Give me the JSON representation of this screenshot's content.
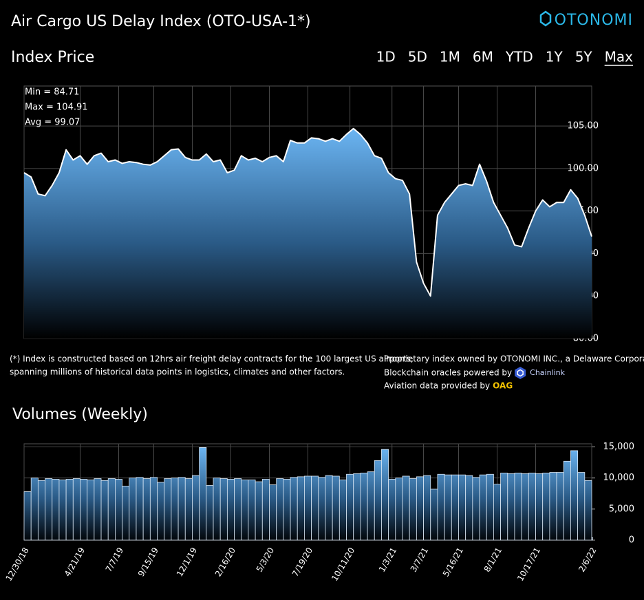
{
  "header": {
    "title": "Air Cargo US Delay Index (OTO-USA-1*)",
    "logo": "OTONOMI",
    "ranges": [
      "1D",
      "5D",
      "1M",
      "6M",
      "YTD",
      "1Y",
      "5Y",
      "Max"
    ],
    "active_range": "Max"
  },
  "stats": [
    "Min = 84.71",
    "Max = 104.91",
    "Avg = 99.07"
  ],
  "footnotes": {
    "left": [
      "(*) Index is constructed based on 12hrs air freight delay contracts for the 100 largest US airports,",
      "spanning millions of historical data points in logistics, climates and other factors."
    ],
    "right": [
      "Proprietary index owned by OTONOMI INC., a Delaware Corporation.",
      "Blockchain oracles powered by",
      "Aviation data provided by"
    ],
    "chainlink": "Chainlink",
    "oag": "OAG"
  },
  "chart_data": [
    {
      "type": "area",
      "title": "Index Price",
      "color": "#ffffff",
      "fill_color": "#62b0f0",
      "grid": true,
      "x": [
        "12/30/18",
        "1/13/19",
        "1/27/19",
        "2/10/19",
        "2/24/19",
        "3/10/19",
        "3/24/19",
        "4/7/19",
        "4/21/19",
        "5/5/19",
        "5/19/19",
        "6/2/19",
        "6/16/19",
        "6/30/19",
        "7/14/19",
        "7/28/19",
        "8/11/19",
        "8/25/19",
        "9/8/19",
        "9/22/19",
        "10/6/19",
        "10/20/19",
        "11/3/19",
        "11/17/19",
        "12/1/19",
        "12/15/19",
        "12/29/19",
        "1/12/20",
        "1/26/20",
        "2/9/20",
        "2/23/20",
        "3/8/20",
        "3/22/20",
        "4/5/20",
        "4/19/20",
        "5/3/20",
        "5/17/20",
        "5/31/20",
        "6/14/20",
        "6/28/20",
        "7/12/20",
        "7/26/20",
        "8/9/20",
        "8/23/20",
        "9/6/20",
        "9/20/20",
        "10/4/20",
        "10/18/20",
        "11/1/20",
        "11/15/20",
        "11/29/20",
        "12/13/20",
        "12/27/20",
        "1/10/21",
        "1/24/21",
        "2/7/21",
        "2/21/21",
        "3/7/21",
        "3/21/21",
        "4/4/21",
        "4/18/21",
        "5/2/21",
        "5/16/21",
        "5/30/21",
        "6/13/21",
        "6/27/21",
        "7/11/21",
        "7/25/21",
        "8/8/21",
        "8/22/21",
        "9/5/21",
        "9/19/21",
        "10/3/21",
        "10/17/21",
        "10/31/21",
        "11/14/21",
        "11/28/21",
        "12/12/21",
        "12/26/21",
        "1/9/22",
        "1/23/22",
        "2/6/22"
      ],
      "values": [
        99.5,
        99,
        97,
        96.8,
        98,
        99.5,
        102.2,
        101,
        101.5,
        100.5,
        101.5,
        101.8,
        100.8,
        101,
        100.6,
        100.8,
        100.7,
        100.5,
        100.4,
        100.8,
        101.5,
        102.2,
        102.3,
        101.3,
        101,
        101,
        101.7,
        100.8,
        101,
        99.5,
        99.8,
        101.5,
        101,
        101.2,
        100.8,
        101.3,
        101.5,
        100.8,
        103.3,
        103,
        103,
        103.6,
        103.5,
        103.2,
        103.5,
        103.2,
        104,
        104.7,
        104,
        103,
        101.5,
        101.2,
        99.5,
        98.8,
        98.6,
        97,
        89,
        86.5,
        85,
        94.5,
        96,
        97,
        98,
        98.2,
        98,
        100.5,
        98.5,
        96,
        94.5,
        93,
        91,
        90.8,
        93,
        95,
        96.3,
        95.5,
        96,
        96,
        97.5,
        96.5,
        94.5,
        92
      ],
      "xlim": [
        "12/30/18",
        "2/6/22"
      ],
      "xticks": [
        "12/30/18",
        "4/21/19",
        "7/7/19",
        "9/15/19",
        "12/1/19",
        "2/16/20",
        "5/3/20",
        "7/19/20",
        "10/11/20",
        "1/3/21",
        "3/7/21",
        "5/16/21",
        "8/1/21",
        "10/17/21",
        "2/6/22"
      ],
      "ylim": [
        80,
        109.7
      ],
      "yticks": [
        {
          "value": 80,
          "label": "80.00"
        },
        {
          "value": 85,
          "label": "85.00"
        },
        {
          "value": 90,
          "label": "90.00"
        },
        {
          "value": 95,
          "label": "95.00"
        },
        {
          "value": 100,
          "label": "100.00"
        },
        {
          "value": 105,
          "label": "105.00"
        }
      ]
    },
    {
      "type": "bar",
      "title": "Volumes (Weekly)",
      "color": "#62b0f0",
      "grid": true,
      "x": [
        "12/30/18",
        "1/13/19",
        "1/27/19",
        "2/10/19",
        "2/24/19",
        "3/10/19",
        "3/24/19",
        "4/7/19",
        "4/21/19",
        "5/5/19",
        "5/19/19",
        "6/2/19",
        "6/16/19",
        "6/30/19",
        "7/14/19",
        "7/28/19",
        "8/11/19",
        "8/25/19",
        "9/8/19",
        "9/22/19",
        "10/6/19",
        "10/20/19",
        "11/3/19",
        "11/17/19",
        "12/1/19",
        "12/15/19",
        "12/29/19",
        "1/12/20",
        "1/26/20",
        "2/9/20",
        "2/23/20",
        "3/8/20",
        "3/22/20",
        "4/5/20",
        "4/19/20",
        "5/3/20",
        "5/17/20",
        "5/31/20",
        "6/14/20",
        "6/28/20",
        "7/12/20",
        "7/26/20",
        "8/9/20",
        "8/23/20",
        "9/6/20",
        "9/20/20",
        "10/4/20",
        "10/18/20",
        "11/1/20",
        "11/15/20",
        "11/29/20",
        "12/13/20",
        "12/27/20",
        "1/10/21",
        "1/24/21",
        "2/7/21",
        "2/21/21",
        "3/7/21",
        "3/21/21",
        "4/4/21",
        "4/18/21",
        "5/2/21",
        "5/16/21",
        "5/30/21",
        "6/13/21",
        "6/27/21",
        "7/11/21",
        "7/25/21",
        "8/8/21",
        "8/22/21",
        "9/5/21",
        "9/19/21",
        "10/3/21",
        "10/17/21",
        "10/31/21",
        "11/14/21",
        "11/28/21",
        "12/12/21",
        "12/26/21",
        "1/9/22",
        "1/23/22",
        "2/6/22"
      ],
      "values": [
        7800,
        10000,
        9600,
        9900,
        9800,
        9700,
        9800,
        9900,
        9800,
        9700,
        9900,
        9600,
        9900,
        9800,
        8700,
        10000,
        10100,
        9900,
        10100,
        9300,
        9900,
        10000,
        10100,
        9900,
        10400,
        14900,
        8800,
        10000,
        9900,
        9800,
        9900,
        9700,
        9700,
        9400,
        9800,
        8900,
        9900,
        9800,
        10100,
        10200,
        10300,
        10300,
        10100,
        10400,
        10300,
        9700,
        10600,
        10700,
        10800,
        11000,
        12800,
        14600,
        9800,
        10000,
        10300,
        9900,
        10200,
        10400,
        8200,
        10600,
        10500,
        10500,
        10500,
        10400,
        10100,
        10500,
        10600,
        9000,
        10800,
        10700,
        10800,
        10700,
        10800,
        10700,
        10800,
        10900,
        10900,
        12700,
        14400,
        10900,
        9600,
        400
      ],
      "xlim": [
        "12/30/18",
        "2/6/22"
      ],
      "xticks": [
        "12/30/18",
        "4/21/19",
        "7/7/19",
        "9/15/19",
        "12/1/19",
        "2/16/20",
        "5/3/20",
        "7/19/20",
        "10/11/20",
        "1/3/21",
        "3/7/21",
        "5/16/21",
        "8/1/21",
        "10/17/21",
        "2/6/22"
      ],
      "ylim": [
        0,
        15500
      ],
      "yticks": [
        0,
        {
          "value": 5000,
          "label": "5,000"
        },
        {
          "value": 10000,
          "label": "10,000"
        },
        {
          "value": 15000,
          "label": "15,000"
        }
      ]
    }
  ]
}
